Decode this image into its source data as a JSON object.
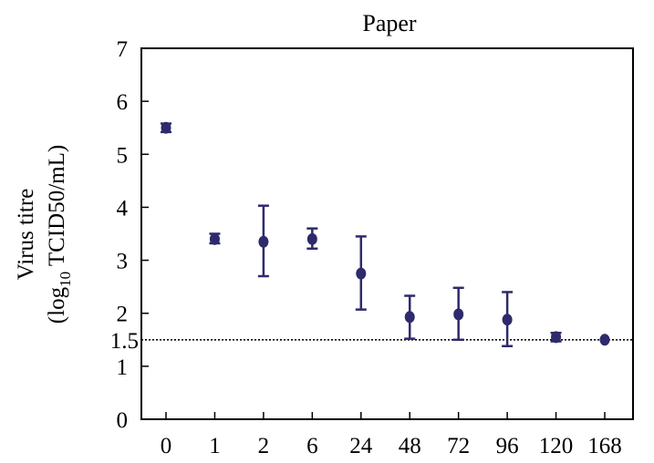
{
  "chart_data": {
    "type": "scatter",
    "title": "Paper",
    "ylabel_line1": "Virus titre",
    "ylabel_line2_prefix": "(log",
    "ylabel_line2_sub": "10",
    "ylabel_line2_suffix": " TCID50/mL)",
    "xlabel": "",
    "categories": [
      "0",
      "1",
      "2",
      "6",
      "24",
      "48",
      "72",
      "96",
      "120",
      "168"
    ],
    "values": [
      5.5,
      3.4,
      3.35,
      3.4,
      2.75,
      1.93,
      1.98,
      1.88,
      1.55,
      1.5
    ],
    "error_low": [
      5.42,
      3.32,
      2.7,
      3.22,
      2.07,
      1.52,
      1.5,
      1.38,
      1.47,
      1.5
    ],
    "error_high": [
      5.58,
      3.5,
      4.03,
      3.6,
      3.45,
      2.33,
      2.48,
      2.4,
      1.63,
      1.5
    ],
    "ylim": [
      0,
      7
    ],
    "yticks": [
      "0",
      "1",
      "2",
      "3",
      "4",
      "5",
      "6",
      "7"
    ],
    "reference_line": {
      "value": 1.5,
      "label": "1.5",
      "style": "dotted"
    },
    "grid": false,
    "marker_color": "#2e2a6b"
  }
}
